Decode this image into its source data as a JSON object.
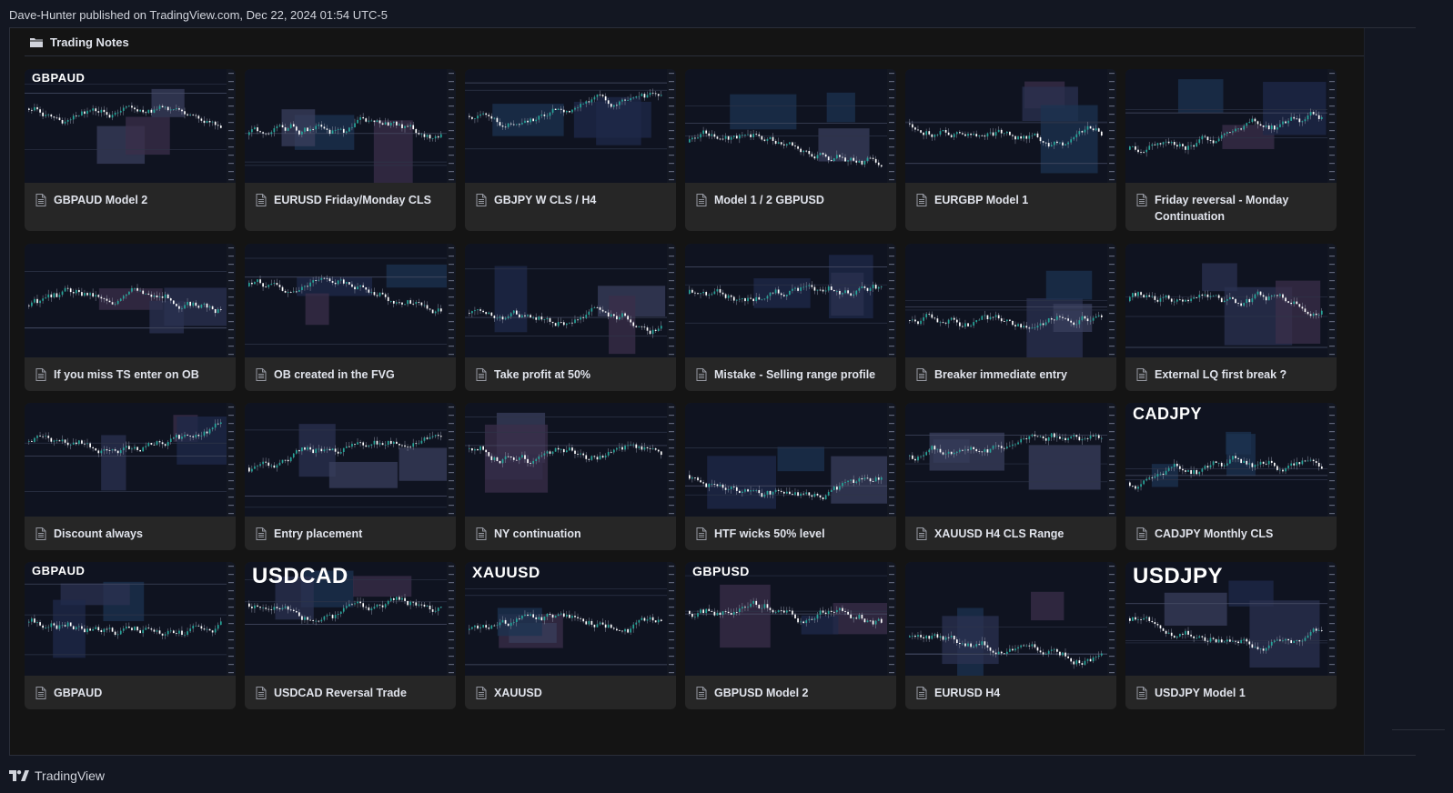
{
  "publish_line": "Dave-Hunter published on TradingView.com, Dec 22, 2024 01:54 UTC-5",
  "folder": {
    "icon": "folder-icon",
    "title": "Trading Notes"
  },
  "footer": {
    "icon": "tradingview-logo-icon",
    "brand": "TradingView"
  },
  "colors": {
    "background": "#131722",
    "card": "#262626",
    "thumb": "#0f1320",
    "bull": "#26a69a",
    "bear": "#ffffff"
  },
  "rows": [
    {
      "cards": [
        {
          "title": "GBPAUD Model 2",
          "thumb_label": "GBPAUD"
        },
        {
          "title": "EURUSD Friday/Monday CLS",
          "thumb_label": ""
        },
        {
          "title": "GBJPY W CLS / H4",
          "thumb_label": ""
        },
        {
          "title": "Model 1 / 2 GBPUSD",
          "thumb_label": ""
        },
        {
          "title": "EURGBP Model 1",
          "thumb_label": ""
        },
        {
          "title": "Friday reversal - Monday Continuation",
          "thumb_label": ""
        }
      ]
    },
    {
      "cards": [
        {
          "title": "If you miss TS enter on OB",
          "thumb_label": ""
        },
        {
          "title": "OB created in the FVG",
          "thumb_label": ""
        },
        {
          "title": "Take profit at 50%",
          "thumb_label": ""
        },
        {
          "title": "Mistake - Selling range profile",
          "thumb_label": ""
        },
        {
          "title": "Breaker immediate entry",
          "thumb_label": ""
        },
        {
          "title": "External LQ first break ?",
          "thumb_label": ""
        }
      ]
    },
    {
      "cards": [
        {
          "title": "Discount always",
          "thumb_label": ""
        },
        {
          "title": "Entry placement",
          "thumb_label": ""
        },
        {
          "title": "NY continuation",
          "thumb_label": ""
        },
        {
          "title": "HTF wicks 50% level",
          "thumb_label": ""
        },
        {
          "title": "XAUUSD H4 CLS Range",
          "thumb_label": ""
        },
        {
          "title": "CADJPY Monthly CLS",
          "thumb_label": "CADJPY"
        }
      ]
    },
    {
      "cards": [
        {
          "title": "GBPAUD",
          "thumb_label": "GBPAUD"
        },
        {
          "title": "USDCAD Reversal Trade",
          "thumb_label": "USDCAD"
        },
        {
          "title": "XAUUSD",
          "thumb_label": "XAUUSD"
        },
        {
          "title": "GBPUSD Model 2",
          "thumb_label": "GBPUSD"
        },
        {
          "title": "EURUSD H4",
          "thumb_label": ""
        },
        {
          "title": "USDJPY Model 1",
          "thumb_label": "USDJPY"
        }
      ]
    }
  ]
}
